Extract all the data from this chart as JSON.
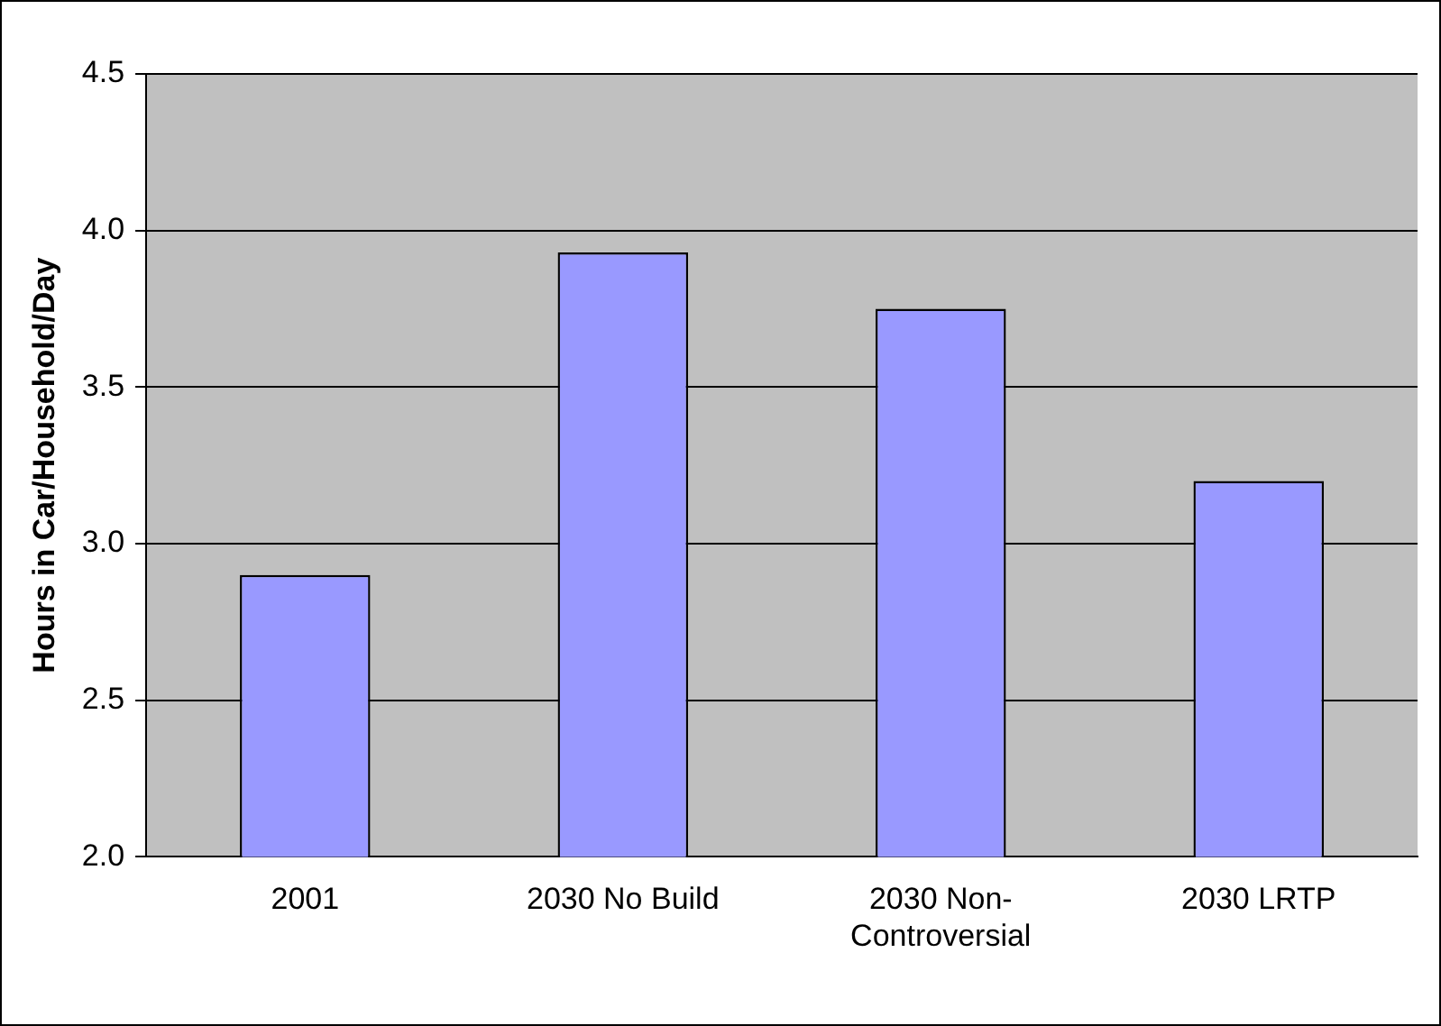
{
  "chart_data": {
    "type": "bar",
    "ylabel": "Hours in Car/Household/Day",
    "categories": [
      "2001",
      "2030 No Build",
      "2030 Non-Controversial",
      "2030 LRTP"
    ],
    "values": [
      2.9,
      3.93,
      3.75,
      3.2
    ],
    "color": "#9999ff",
    "ylim": [
      2.0,
      4.5
    ],
    "yticks": [
      {
        "value": 2.0,
        "label": "2.0"
      },
      {
        "value": 2.5,
        "label": "2.5"
      },
      {
        "value": 3.0,
        "label": "3.0"
      },
      {
        "value": 3.5,
        "label": "3.5"
      },
      {
        "value": 4.0,
        "label": "4.0"
      },
      {
        "value": 4.5,
        "label": "4.5"
      }
    ],
    "grid": "y",
    "legend": false
  }
}
